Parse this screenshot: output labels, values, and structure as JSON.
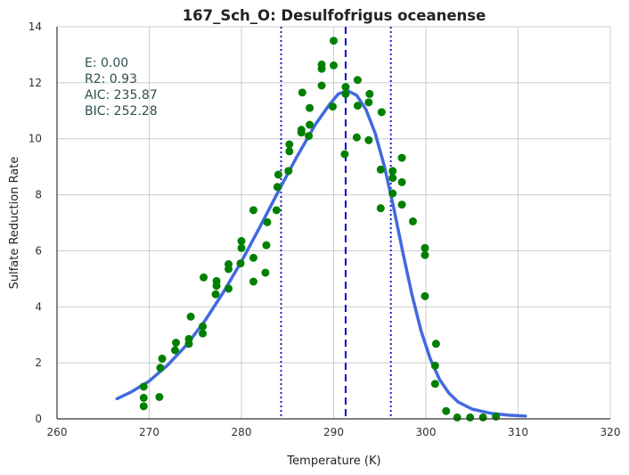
{
  "chart_data": {
    "type": "scatter",
    "title": "167_Sch_O: Desulfofrigus oceanense",
    "xlabel": "Temperature (K)",
    "ylabel": "Sulfate Reduction Rate",
    "xlim": [
      260,
      320
    ],
    "ylim": [
      0,
      14
    ],
    "xticks": [
      260,
      270,
      280,
      290,
      300,
      310,
      320
    ],
    "yticks": [
      0,
      2,
      4,
      6,
      8,
      10,
      12,
      14
    ],
    "grid": true,
    "stats": [
      "E:  0.00",
      "R2:  0.93",
      "AIC: 235.87",
      "BIC: 252.28"
    ],
    "vlines": [
      {
        "x": 284.3,
        "style": "dotted",
        "color": "#0000cc"
      },
      {
        "x": 291.3,
        "style": "dashed",
        "color": "#0000cc"
      },
      {
        "x": 296.2,
        "style": "dotted",
        "color": "#0000cc"
      }
    ],
    "points": {
      "color": "#008000",
      "data": [
        [
          269.4,
          1.15
        ],
        [
          269.4,
          0.75
        ],
        [
          269.4,
          0.45
        ],
        [
          271.1,
          0.78
        ],
        [
          271.2,
          1.82
        ],
        [
          271.4,
          2.15
        ],
        [
          272.8,
          2.45
        ],
        [
          272.9,
          2.72
        ],
        [
          274.3,
          2.68
        ],
        [
          274.3,
          2.85
        ],
        [
          274.5,
          3.65
        ],
        [
          275.8,
          3.05
        ],
        [
          275.8,
          3.3
        ],
        [
          275.9,
          5.05
        ],
        [
          277.2,
          4.45
        ],
        [
          277.3,
          4.75
        ],
        [
          277.3,
          4.92
        ],
        [
          278.6,
          4.65
        ],
        [
          278.6,
          5.35
        ],
        [
          278.6,
          5.52
        ],
        [
          279.9,
          5.55
        ],
        [
          280.0,
          6.1
        ],
        [
          280.0,
          6.35
        ],
        [
          281.3,
          4.9
        ],
        [
          281.3,
          5.75
        ],
        [
          281.3,
          7.45
        ],
        [
          282.6,
          5.22
        ],
        [
          282.7,
          6.2
        ],
        [
          282.8,
          7.02
        ],
        [
          283.8,
          7.45
        ],
        [
          283.9,
          8.28
        ],
        [
          284.0,
          8.72
        ],
        [
          285.1,
          8.85
        ],
        [
          285.2,
          9.55
        ],
        [
          285.2,
          9.8
        ],
        [
          286.5,
          10.22
        ],
        [
          286.5,
          10.32
        ],
        [
          286.6,
          11.65
        ],
        [
          287.3,
          10.1
        ],
        [
          287.4,
          10.5
        ],
        [
          287.4,
          11.1
        ],
        [
          288.7,
          11.9
        ],
        [
          288.7,
          12.5
        ],
        [
          288.7,
          12.65
        ],
        [
          289.9,
          11.15
        ],
        [
          290.0,
          12.62
        ],
        [
          290.0,
          13.5
        ],
        [
          291.2,
          9.45
        ],
        [
          291.3,
          11.6
        ],
        [
          291.3,
          11.85
        ],
        [
          292.5,
          10.05
        ],
        [
          292.6,
          11.18
        ],
        [
          292.6,
          12.1
        ],
        [
          293.8,
          9.95
        ],
        [
          293.8,
          11.3
        ],
        [
          293.9,
          11.6
        ],
        [
          295.1,
          7.52
        ],
        [
          295.1,
          8.9
        ],
        [
          295.2,
          10.95
        ],
        [
          296.4,
          8.05
        ],
        [
          296.4,
          8.6
        ],
        [
          296.4,
          8.85
        ],
        [
          297.4,
          7.65
        ],
        [
          297.4,
          8.45
        ],
        [
          297.4,
          9.32
        ],
        [
          298.6,
          7.05
        ],
        [
          299.9,
          4.38
        ],
        [
          299.9,
          5.85
        ],
        [
          299.9,
          6.1
        ],
        [
          301.0,
          1.25
        ],
        [
          301.0,
          1.9
        ],
        [
          301.1,
          2.68
        ],
        [
          302.2,
          0.28
        ],
        [
          303.4,
          0.05
        ],
        [
          304.8,
          0.05
        ],
        [
          306.2,
          0.05
        ],
        [
          307.6,
          0.08
        ]
      ]
    },
    "fit_curve": {
      "color": "#4169e1",
      "data": [
        [
          266.5,
          0.72
        ],
        [
          268,
          0.95
        ],
        [
          270,
          1.35
        ],
        [
          272,
          1.92
        ],
        [
          274,
          2.62
        ],
        [
          276,
          3.48
        ],
        [
          278,
          4.5
        ],
        [
          280,
          5.62
        ],
        [
          282,
          6.85
        ],
        [
          284,
          8.12
        ],
        [
          286,
          9.35
        ],
        [
          288,
          10.5
        ],
        [
          289.5,
          11.2
        ],
        [
          290.5,
          11.6
        ],
        [
          291.5,
          11.72
        ],
        [
          292.5,
          11.55
        ],
        [
          293.5,
          11.05
        ],
        [
          294.5,
          10.2
        ],
        [
          295.5,
          9.02
        ],
        [
          296.5,
          7.55
        ],
        [
          297.5,
          5.95
        ],
        [
          298.5,
          4.42
        ],
        [
          299.5,
          3.12
        ],
        [
          300.5,
          2.12
        ],
        [
          301.5,
          1.4
        ],
        [
          302.5,
          0.92
        ],
        [
          303.5,
          0.6
        ],
        [
          305,
          0.35
        ],
        [
          307,
          0.2
        ],
        [
          309,
          0.13
        ],
        [
          310.8,
          0.1
        ]
      ]
    }
  }
}
